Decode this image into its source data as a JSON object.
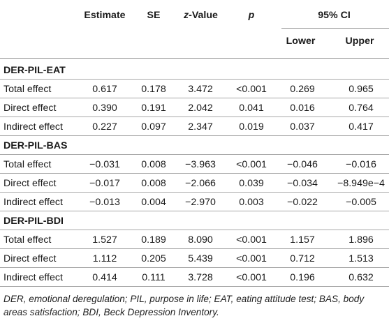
{
  "table": {
    "headers": {
      "estimate": "Estimate",
      "se": "SE",
      "z_prefix": "z",
      "z_suffix": "-Value",
      "p": "p",
      "ci": "95% CI",
      "lower": "Lower",
      "upper": "Upper"
    },
    "sections": [
      {
        "title": "DER-PIL-EAT",
        "rows": [
          {
            "label": "Total effect",
            "values": [
              "0.617",
              "0.178",
              "3.472",
              "<0.001",
              "0.269",
              "0.965"
            ]
          },
          {
            "label": "Direct effect",
            "values": [
              "0.390",
              "0.191",
              "2.042",
              "0.041",
              "0.016",
              "0.764"
            ]
          },
          {
            "label": "Indirect effect",
            "values": [
              "0.227",
              "0.097",
              "2.347",
              "0.019",
              "0.037",
              "0.417"
            ]
          }
        ]
      },
      {
        "title": "DER-PIL-BAS",
        "rows": [
          {
            "label": "Total effect",
            "values": [
              "−0.031",
              "0.008",
              "−3.963",
              "<0.001",
              "−0.046",
              "−0.016"
            ]
          },
          {
            "label": "Direct effect",
            "values": [
              "−0.017",
              "0.008",
              "−2.066",
              "0.039",
              "−0.034",
              "−8.949e−4"
            ]
          },
          {
            "label": "Indirect effect",
            "values": [
              "−0.013",
              "0.004",
              "−2.970",
              "0.003",
              "−0.022",
              "−0.005"
            ]
          }
        ]
      },
      {
        "title": "DER-PIL-BDI",
        "rows": [
          {
            "label": "Total effect",
            "values": [
              "1.527",
              "0.189",
              "8.090",
              "<0.001",
              "1.157",
              "1.896"
            ]
          },
          {
            "label": "Direct effect",
            "values": [
              "1.112",
              "0.205",
              "5.439",
              "<0.001",
              "0.712",
              "1.513"
            ]
          },
          {
            "label": "Indirect effect",
            "values": [
              "0.414",
              "0.111",
              "3.728",
              "<0.001",
              "0.196",
              "0.632"
            ]
          }
        ]
      }
    ]
  },
  "footnote": "DER, emotional deregulation; PIL, purpose in life; EAT, eating attitude test; BAS, body areas satisfaction; BDI, Beck Depression Inventory."
}
